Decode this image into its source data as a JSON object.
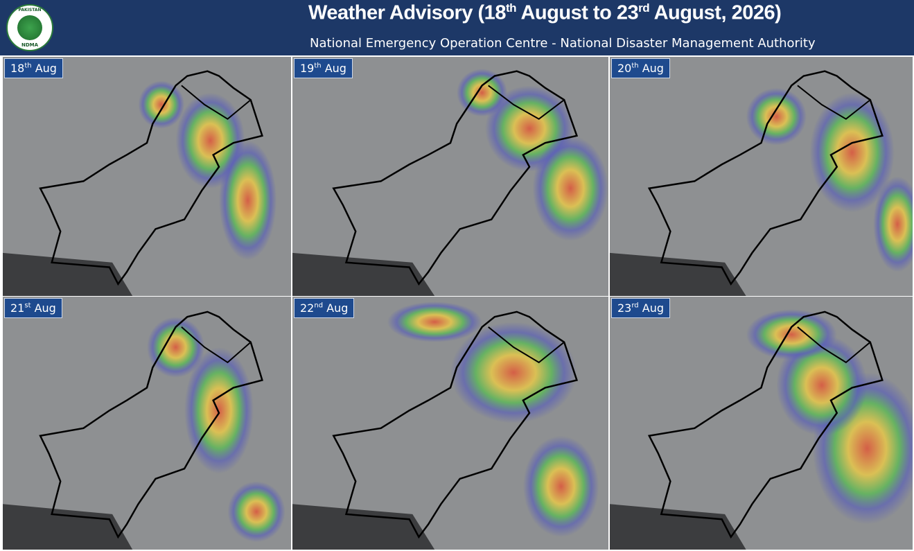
{
  "header": {
    "title": [
      "Weather Advisory (18",
      "th",
      " August to 23",
      "rd",
      " August, 2026)"
    ],
    "subtitle": "National Emergency Operation Centre - National Disaster Management Authority"
  },
  "logo": {
    "top": "PAKISTAN",
    "bottom": "NDMA"
  },
  "panels": [
    {
      "day": "18",
      "suffix": "th",
      "month": "Aug"
    },
    {
      "day": "19",
      "suffix": "th",
      "month": "Aug"
    },
    {
      "day": "20",
      "suffix": "th",
      "month": "Aug"
    },
    {
      "day": "21",
      "suffix": "st",
      "month": "Aug"
    },
    {
      "day": "22",
      "suffix": "nd",
      "month": "Aug"
    },
    {
      "day": "23",
      "suffix": "rd",
      "month": "Aug"
    }
  ]
}
